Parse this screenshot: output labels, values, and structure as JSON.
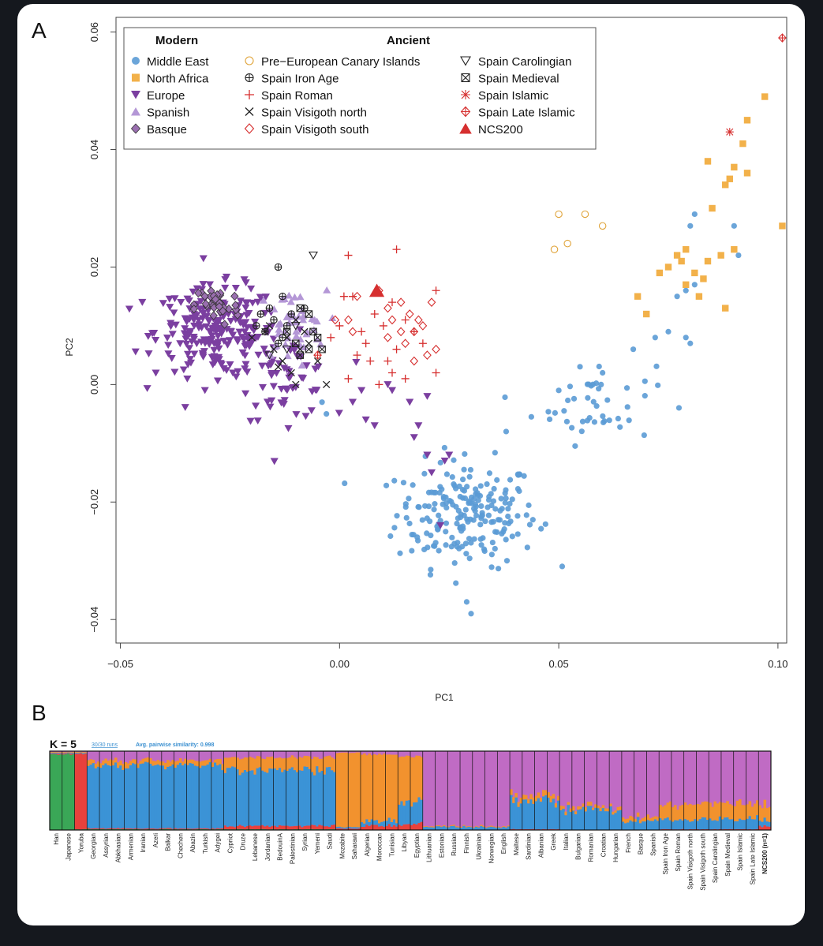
{
  "panel_a": {
    "letter": "A"
  },
  "panel_b": {
    "letter": "B"
  },
  "legend": {
    "modern_header": "Modern",
    "ancient_header": "Ancient",
    "entries": [
      {
        "label": "Middle East",
        "marker": "circle-filled",
        "color": "#5b9bd5"
      },
      {
        "label": "North Africa",
        "marker": "square-filled",
        "color": "#f2b14a"
      },
      {
        "label": "Europe",
        "marker": "triangle-down-filled",
        "color": "#7b3fa0"
      },
      {
        "label": "Spanish",
        "marker": "triangle-up-filled",
        "color": "#b497d6"
      },
      {
        "label": "Basque",
        "marker": "diamond-filled",
        "color": "#9a6fb0"
      },
      {
        "label": "Pre−European Canary Islands",
        "marker": "circle-open",
        "color": "#e0a43a"
      },
      {
        "label": "Spain Iron Age",
        "marker": "circle-plus",
        "color": "#222222"
      },
      {
        "label": "Spain Roman",
        "marker": "plus",
        "color": "#d62f2f"
      },
      {
        "label": "Spain Visigoth north",
        "marker": "cross",
        "color": "#222222"
      },
      {
        "label": "Spain Visigoth south",
        "marker": "diamond-open",
        "color": "#d62f2f"
      },
      {
        "label": "Spain Carolingian",
        "marker": "triangle-down-open",
        "color": "#222222"
      },
      {
        "label": "Spain Medieval",
        "marker": "square-cross",
        "color": "#222222"
      },
      {
        "label": "Spain Islamic",
        "marker": "asterisk",
        "color": "#d62f2f"
      },
      {
        "label": "Spain Late Islamic",
        "marker": "diamond-plus",
        "color": "#d62f2f"
      },
      {
        "label": "NCS200",
        "marker": "triangle-up-filled",
        "color": "#d62f2f"
      }
    ]
  },
  "chart_data": [
    {
      "type": "scatter",
      "xlabel": "PC1",
      "ylabel": "PC2",
      "xlim": [
        -0.051,
        0.102
      ],
      "ylim": [
        -0.044,
        0.0625
      ],
      "xticks": [
        -0.05,
        0.0,
        0.05,
        0.1
      ],
      "xtick_labels": [
        "−0.05",
        "0.00",
        "0.05",
        "0.10"
      ],
      "yticks": [
        -0.04,
        -0.02,
        0.0,
        0.02,
        0.04,
        0.06
      ],
      "ytick_labels": [
        "−0.04",
        "−0.02",
        "0.00",
        "0.02",
        "0.04",
        "0.06"
      ],
      "grid": false,
      "series": [
        {
          "name": "Middle East",
          "clusters": [
            {
              "cx": 0.029,
              "cy": -0.022,
              "sx": 0.008,
              "sy": 0.0045,
              "n": 210
            },
            {
              "cx": 0.058,
              "cy": -0.003,
              "sx": 0.007,
              "sy": 0.0035,
              "n": 45
            }
          ],
          "points": [
            [
              -0.004,
              -0.003
            ],
            [
              -0.003,
              -0.005
            ],
            [
              0.029,
              -0.037
            ],
            [
              0.03,
              -0.039
            ],
            [
              0.072,
              0.008
            ],
            [
              0.075,
              0.009
            ],
            [
              0.077,
              0.015
            ],
            [
              0.079,
              0.016
            ],
            [
              0.08,
              0.027
            ],
            [
              0.081,
              0.029
            ],
            [
              0.079,
              0.008
            ],
            [
              0.08,
              0.007
            ],
            [
              0.09,
              0.027
            ],
            [
              0.091,
              0.022
            ],
            [
              0.067,
              0.006
            ],
            [
              0.06,
              0.002
            ],
            [
              0.081,
              0.017
            ],
            [
              0.05,
              -0.001
            ],
            [
              0.038,
              -0.008
            ]
          ]
        },
        {
          "name": "North Africa",
          "points": [
            [
              0.068,
              0.015
            ],
            [
              0.07,
              0.012
            ],
            [
              0.073,
              0.019
            ],
            [
              0.075,
              0.02
            ],
            [
              0.077,
              0.022
            ],
            [
              0.079,
              0.017
            ],
            [
              0.078,
              0.021
            ],
            [
              0.079,
              0.023
            ],
            [
              0.081,
              0.019
            ],
            [
              0.083,
              0.018
            ],
            [
              0.084,
              0.021
            ],
            [
              0.087,
              0.022
            ],
            [
              0.085,
              0.03
            ],
            [
              0.088,
              0.013
            ],
            [
              0.089,
              0.035
            ],
            [
              0.084,
              0.038
            ],
            [
              0.092,
              0.041
            ],
            [
              0.09,
              0.037
            ],
            [
              0.093,
              0.036
            ],
            [
              0.093,
              0.045
            ],
            [
              0.097,
              0.049
            ],
            [
              0.101,
              0.027
            ],
            [
              0.09,
              0.023
            ],
            [
              0.088,
              0.034
            ],
            [
              0.082,
              0.015
            ]
          ]
        },
        {
          "name": "Europe",
          "clusters": [
            {
              "cx": -0.028,
              "cy": 0.009,
              "sx": 0.007,
              "sy": 0.0038,
              "n": 230
            },
            {
              "cx": -0.012,
              "cy": 0.001,
              "sx": 0.005,
              "sy": 0.0035,
              "n": 60
            }
          ],
          "points": [
            [
              -0.045,
              0.014
            ],
            [
              0.006,
              -0.006
            ],
            [
              0.008,
              -0.007
            ],
            [
              0.017,
              -0.009
            ],
            [
              0.018,
              -0.007
            ],
            [
              0.016,
              -0.003
            ],
            [
              0.02,
              -0.002
            ],
            [
              0.024,
              -0.013
            ],
            [
              0.025,
              -0.012
            ],
            [
              0.02,
              -0.012
            ],
            [
              0.021,
              -0.015
            ],
            [
              0.023,
              -0.024
            ],
            [
              0.011,
              0.0
            ],
            [
              0.012,
              -0.001
            ],
            [
              0.003,
              -0.003
            ],
            [
              0.005,
              -0.001
            ]
          ]
        },
        {
          "name": "Spanish",
          "clusters": [
            {
              "cx": -0.011,
              "cy": 0.01,
              "sx": 0.004,
              "sy": 0.003,
              "n": 45
            }
          ]
        },
        {
          "name": "Basque",
          "clusters": [
            {
              "cx": -0.028,
              "cy": 0.0135,
              "sx": 0.0025,
              "sy": 0.0018,
              "n": 36
            }
          ]
        },
        {
          "name": "Pre−European Canary Islands",
          "points": [
            [
              0.049,
              0.023
            ],
            [
              0.05,
              0.029
            ],
            [
              0.052,
              0.024
            ],
            [
              0.056,
              0.029
            ],
            [
              0.06,
              0.027
            ]
          ]
        },
        {
          "name": "Spain Iron Age",
          "points": [
            [
              -0.014,
              0.02
            ],
            [
              -0.008,
              0.013
            ],
            [
              -0.013,
              0.015
            ],
            [
              -0.016,
              0.013
            ],
            [
              -0.018,
              0.012
            ],
            [
              -0.015,
              0.011
            ],
            [
              -0.012,
              0.01
            ],
            [
              -0.017,
              0.009
            ],
            [
              -0.013,
              0.008
            ],
            [
              -0.011,
              0.012
            ],
            [
              -0.019,
              0.01
            ],
            [
              -0.014,
              0.007
            ]
          ]
        },
        {
          "name": "Spain Roman",
          "points": [
            [
              0.002,
              0.022
            ],
            [
              0.013,
              0.023
            ],
            [
              0.022,
              0.016
            ],
            [
              0.001,
              0.015
            ],
            [
              0.003,
              0.015
            ],
            [
              0.008,
              0.012
            ],
            [
              0.012,
              0.014
            ],
            [
              0.015,
              0.011
            ],
            [
              0.01,
              0.01
            ],
            [
              0.005,
              0.009
            ],
            [
              0.017,
              0.009
            ],
            [
              0.013,
              0.006
            ],
            [
              0.004,
              0.005
            ],
            [
              0.007,
              0.004
            ],
            [
              0.011,
              0.004
            ],
            [
              0.002,
              0.001
            ],
            [
              0.009,
              0.0
            ],
            [
              0.015,
              0.001
            ],
            [
              0.022,
              0.002
            ],
            [
              0.019,
              0.007
            ],
            [
              0.006,
              0.007
            ],
            [
              -0.002,
              0.008
            ],
            [
              0.0,
              0.01
            ],
            [
              0.012,
              0.002
            ]
          ]
        },
        {
          "name": "Spain Visigoth north",
          "points": [
            [
              -0.02,
              0.008
            ],
            [
              -0.017,
              0.009
            ],
            [
              -0.015,
              0.006
            ],
            [
              -0.013,
              0.004
            ],
            [
              -0.011,
              0.002
            ],
            [
              -0.014,
              0.003
            ],
            [
              -0.009,
              0.006
            ],
            [
              -0.01,
              0.0
            ],
            [
              -0.003,
              0.0
            ],
            [
              -0.005,
              0.004
            ],
            [
              -0.016,
              0.01
            ],
            [
              -0.012,
              0.008
            ],
            [
              -0.008,
              0.009
            ],
            [
              -0.007,
              0.007
            ],
            [
              -0.01,
              0.011
            ]
          ]
        },
        {
          "name": "Spain Visigoth south",
          "points": [
            [
              -0.001,
              0.011
            ],
            [
              0.003,
              0.009
            ],
            [
              0.004,
              0.015
            ],
            [
              0.009,
              0.016
            ],
            [
              0.011,
              0.013
            ],
            [
              0.012,
              0.011
            ],
            [
              0.014,
              0.014
            ],
            [
              0.016,
              0.012
            ],
            [
              0.014,
              0.009
            ],
            [
              0.017,
              0.009
            ],
            [
              0.019,
              0.01
            ],
            [
              0.02,
              0.005
            ],
            [
              0.022,
              0.006
            ],
            [
              0.015,
              0.007
            ],
            [
              0.021,
              0.014
            ],
            [
              0.002,
              0.011
            ],
            [
              0.018,
              0.011
            ],
            [
              0.011,
              0.008
            ],
            [
              0.017,
              0.004
            ]
          ]
        },
        {
          "name": "Spain Carolingian",
          "points": [
            [
              -0.006,
              0.022
            ],
            [
              -0.012,
              0.006
            ],
            [
              -0.016,
              0.005
            ],
            [
              -0.01,
              0.01
            ]
          ]
        },
        {
          "name": "Spain Medieval",
          "points": [
            [
              -0.009,
              0.013
            ],
            [
              -0.007,
              0.012
            ],
            [
              -0.006,
              0.009
            ],
            [
              -0.005,
              0.008
            ],
            [
              -0.004,
              0.006
            ],
            [
              -0.01,
              0.007
            ],
            [
              -0.012,
              0.009
            ],
            [
              -0.007,
              0.006
            ],
            [
              -0.009,
              0.005
            ]
          ]
        },
        {
          "name": "Spain Islamic",
          "points": [
            [
              0.089,
              0.043
            ]
          ]
        },
        {
          "name": "Spain Late Islamic",
          "points": [
            [
              0.101,
              0.059
            ],
            [
              -0.005,
              0.005
            ]
          ]
        },
        {
          "name": "NCS200",
          "points": [
            [
              0.0085,
              0.016
            ]
          ]
        }
      ]
    },
    {
      "type": "bar",
      "subtype": "admixture-stacked",
      "k_label": "K = 5",
      "runs_label": "30/30 runs",
      "similarity_label": "Avg. pairwise similarity: 0.998",
      "component_colors": [
        "#3aa757",
        "#e8413c",
        "#3b93d6",
        "#f2922e",
        "#c06bc4"
      ],
      "categories": [
        "Han",
        "Japanese",
        "Yoruba",
        "Georgian",
        "Assyrian",
        "Abkhasian",
        "Armenian",
        "Iranian",
        "Azeri",
        "Balkar",
        "Chechen",
        "Abazin",
        "Turkish",
        "Adygei",
        "Cypriot",
        "Druze",
        "Lebanese",
        "Jordanian",
        "BedouinA",
        "Palestinian",
        "Syrian",
        "Yemeni",
        "Saudi",
        "Mozabite",
        "Saharawi",
        "Algerian",
        "Moroccan",
        "Tunisian",
        "Libyan",
        "Egyptian",
        "Lithuanian",
        "Estonian",
        "Russian",
        "Finnish",
        "Ukrainian",
        "Norwegian",
        "English",
        "Maltese",
        "Sardinian",
        "Albanian",
        "Greek",
        "Italian",
        "Bulgarian",
        "Romanian",
        "Croatian",
        "Hungarian",
        "French",
        "Basque",
        "Spanish",
        "Spain Iron Age",
        "Spain Roman",
        "Spain Visigoth north",
        "Spain Visigoth south",
        "Spain Carolingian",
        "Spain Medieval",
        "Spain Islamic",
        "Spain Late Islamic",
        "NCS200 (n=1)"
      ],
      "ncs200_label": "NCS200 (n=1)"
    }
  ]
}
